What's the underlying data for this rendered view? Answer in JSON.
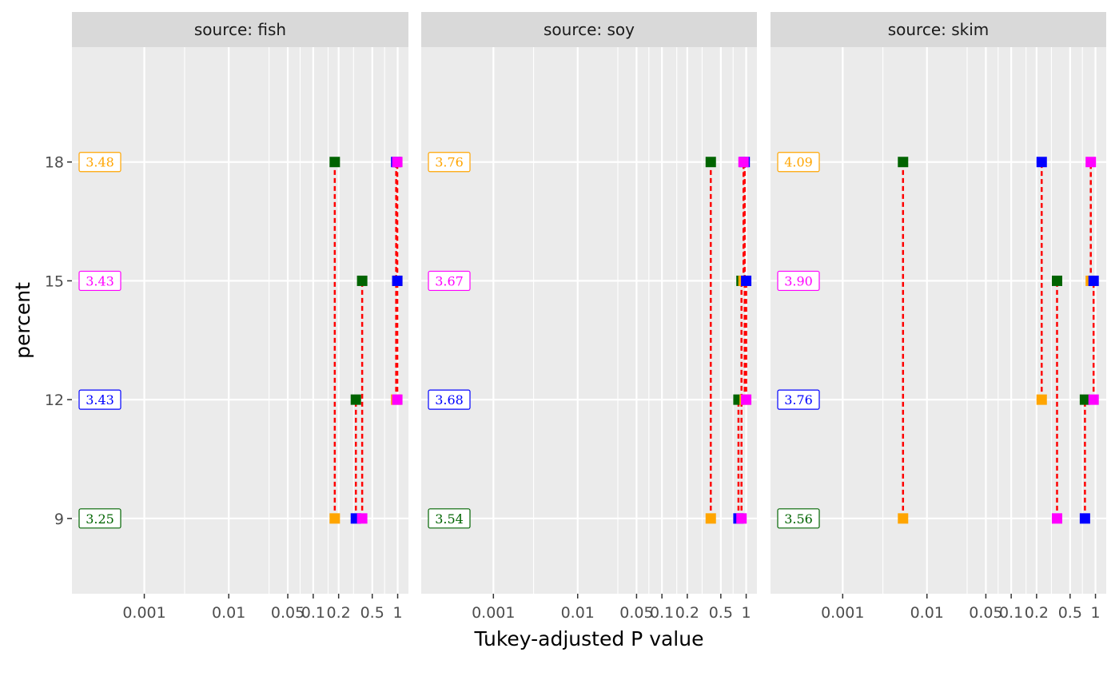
{
  "chart_data": {
    "type": "scatter",
    "xlabel": "Tukey-adjusted P value",
    "ylabel": "percent",
    "x_scale": "log",
    "x_ticks": [
      0.001,
      0.01,
      0.05,
      0.1,
      0.2,
      0.5,
      1
    ],
    "x_tick_labels": [
      "0.001",
      "0.01",
      "0.05",
      "0.1",
      "0.2",
      "0.5",
      "1"
    ],
    "y_levels": [
      9,
      12,
      15,
      18
    ],
    "y_tick_labels": [
      "9",
      "12",
      "15",
      "18"
    ],
    "grid": true,
    "level_colors": {
      "9": "#006400",
      "12": "#0000ff",
      "15": "#ff00ff",
      "18": "#ffa500"
    },
    "connector_color": "#ff0000",
    "panels": [
      {
        "strip": "source: fish",
        "emmeans": [
          {
            "percent": 18,
            "label": "3.48"
          },
          {
            "percent": 15,
            "label": "3.43"
          },
          {
            "percent": 12,
            "label": "3.43"
          },
          {
            "percent": 9,
            "label": "3.25"
          }
        ],
        "comparisons": [
          {
            "a": 9,
            "b": 18,
            "p": 0.18
          },
          {
            "a": 9,
            "b": 12,
            "p": 0.32
          },
          {
            "a": 9,
            "b": 15,
            "p": 0.38
          },
          {
            "a": 12,
            "b": 18,
            "p": 0.96
          },
          {
            "a": 15,
            "b": 18,
            "p": 0.99
          },
          {
            "a": 12,
            "b": 15,
            "p": 0.99
          }
        ]
      },
      {
        "strip": "source: soy",
        "emmeans": [
          {
            "percent": 18,
            "label": "3.76"
          },
          {
            "percent": 15,
            "label": "3.67"
          },
          {
            "percent": 12,
            "label": "3.68"
          },
          {
            "percent": 9,
            "label": "3.54"
          }
        ],
        "comparisons": [
          {
            "a": 9,
            "b": 18,
            "p": 0.38
          },
          {
            "a": 9,
            "b": 12,
            "p": 0.81
          },
          {
            "a": 9,
            "b": 15,
            "p": 0.88
          },
          {
            "a": 12,
            "b": 18,
            "p": 0.96
          },
          {
            "a": 15,
            "b": 18,
            "p": 0.93
          },
          {
            "a": 12,
            "b": 15,
            "p": 1.0
          }
        ]
      },
      {
        "strip": "source: skim",
        "emmeans": [
          {
            "percent": 18,
            "label": "4.09"
          },
          {
            "percent": 15,
            "label": "3.90"
          },
          {
            "percent": 12,
            "label": "3.76"
          },
          {
            "percent": 9,
            "label": "3.56"
          }
        ],
        "comparisons": [
          {
            "a": 9,
            "b": 18,
            "p": 0.0052
          },
          {
            "a": 12,
            "b": 18,
            "p": 0.23
          },
          {
            "a": 9,
            "b": 15,
            "p": 0.35
          },
          {
            "a": 9,
            "b": 12,
            "p": 0.75
          },
          {
            "a": 15,
            "b": 18,
            "p": 0.88
          },
          {
            "a": 12,
            "b": 15,
            "p": 0.95
          }
        ]
      }
    ]
  }
}
